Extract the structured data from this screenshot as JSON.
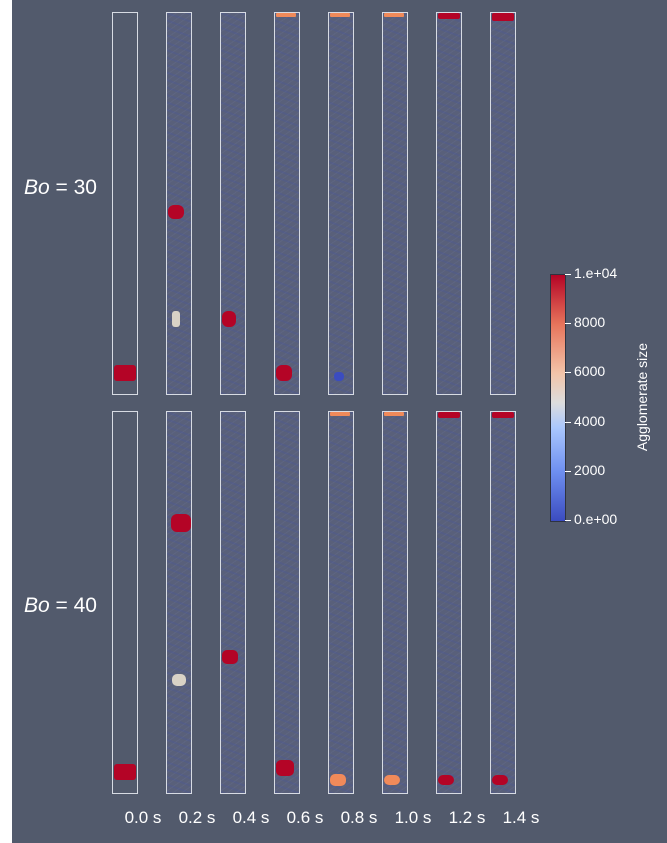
{
  "rows": [
    {
      "symbol": "Bo",
      "equals": " = ",
      "value": "30"
    },
    {
      "symbol": "Bo",
      "equals": " = ",
      "value": "40"
    }
  ],
  "times": [
    "0.0 s",
    "0.2 s",
    "0.4 s",
    "0.6 s",
    "0.8 s",
    "1.0 s",
    "1.2 s",
    "1.4 s"
  ],
  "colorbar": {
    "title": "Agglomerate size",
    "ticks": [
      "1.e+04",
      "8000",
      "6000",
      "4000",
      "2000",
      "0.e+00"
    ],
    "range": [
      0,
      10000
    ],
    "colormap": [
      "#3b4cc0",
      "#dddddd",
      "#b40426"
    ]
  },
  "colors": {
    "background": "#525a6c",
    "agglomerate_large": "#b40426",
    "agglomerate_mid": "#f08a5a",
    "agglomerate_small": "#3b4cc0"
  }
}
